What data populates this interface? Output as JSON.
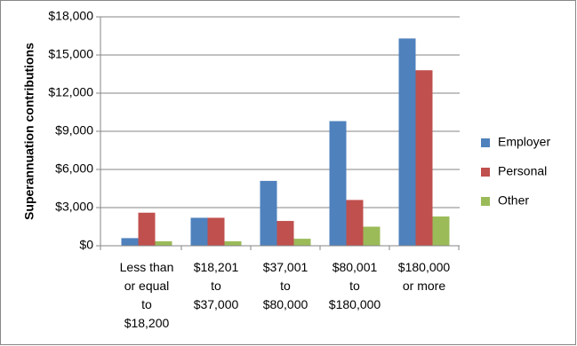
{
  "chart_data": {
    "type": "bar",
    "y_label": "Superannuation contributions",
    "categories": [
      "Less than\nor equal\nto\n$18,200",
      "$18,201\nto\n$37,000",
      "$37,001\nto\n$80,000",
      "$80,001\nto\n$180,000",
      "$180,000\nor more"
    ],
    "series": [
      {
        "name": "Employer",
        "color": "#4f81bd",
        "values": [
          600,
          2200,
          5100,
          9800,
          16300
        ]
      },
      {
        "name": "Personal",
        "color": "#c0504d",
        "values": [
          2600,
          2200,
          1950,
          3600,
          13800
        ]
      },
      {
        "name": "Other",
        "color": "#9bbb59",
        "values": [
          350,
          350,
          550,
          1500,
          2300
        ]
      }
    ],
    "ylim": [
      0,
      18000
    ],
    "yticks": [
      {
        "value": 0,
        "label": "$0"
      },
      {
        "value": 3000,
        "label": "$3,000"
      },
      {
        "value": 6000,
        "label": "$6,000"
      },
      {
        "value": 9000,
        "label": "$9,000"
      },
      {
        "value": 12000,
        "label": "$12,000"
      },
      {
        "value": 15000,
        "label": "$15,000"
      },
      {
        "value": 18000,
        "label": "$18,000"
      }
    ],
    "grid": true,
    "legend": "right"
  }
}
